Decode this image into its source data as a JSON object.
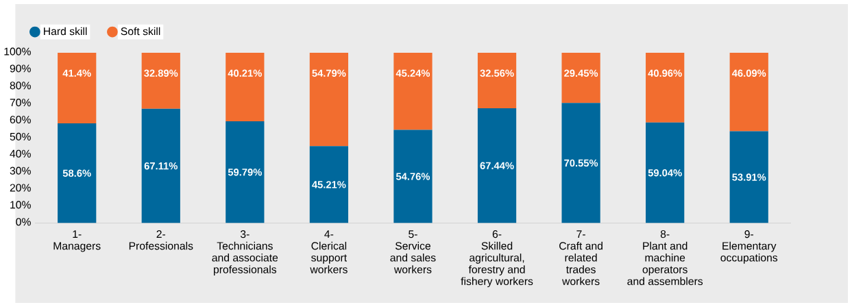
{
  "chart_data": {
    "type": "bar",
    "stacked": true,
    "categories": [
      "1-\nManagers",
      "2-\nProfessionals",
      "3-\nTechnicians\nand associate\nprofessionals",
      "4-\nClerical\nsupport\nworkers",
      "5-\nService\nand sales\nworkers",
      "6-\nSkilled\nagricultural,\nforestry and\nfishery workers",
      "7-\nCraft and\nrelated\ntrades\nworkers",
      "8-\nPlant and\nmachine\noperators\nand assemblers",
      "9-\nElementary\noccupations"
    ],
    "series": [
      {
        "name": "Hard skill",
        "color": "#00689c",
        "values": [
          58.6,
          67.11,
          59.79,
          45.21,
          54.76,
          67.44,
          70.55,
          59.04,
          53.91
        ],
        "value_labels": [
          "58.6%",
          "67.11%",
          "59.79%",
          "45.21%",
          "54.76%",
          "67.44%",
          "70.55%",
          "59.04%",
          "53.91%"
        ]
      },
      {
        "name": "Soft skill",
        "color": "#f26d2f",
        "values": [
          41.4,
          32.89,
          40.21,
          54.79,
          45.24,
          32.56,
          29.45,
          40.96,
          46.09
        ],
        "value_labels": [
          "41.4%",
          "32.89%",
          "40.21%",
          "54.79%",
          "45.24%",
          "32.56%",
          "29.45%",
          "40.96%",
          "46.09%"
        ]
      }
    ],
    "ylim": [
      0,
      100
    ],
    "yticks": [
      {
        "value": 0,
        "label": "0%"
      },
      {
        "value": 10,
        "label": "10%"
      },
      {
        "value": 20,
        "label": "20%"
      },
      {
        "value": 30,
        "label": "30%"
      },
      {
        "value": 40,
        "label": "40%"
      },
      {
        "value": 50,
        "label": "50%"
      },
      {
        "value": 60,
        "label": "60%"
      },
      {
        "value": 70,
        "label": "70%"
      },
      {
        "value": 80,
        "label": "80%"
      },
      {
        "value": 90,
        "label": "90%"
      },
      {
        "value": 100,
        "label": "100%"
      }
    ],
    "legend": "top left",
    "marker": "circle",
    "grid": false
  }
}
